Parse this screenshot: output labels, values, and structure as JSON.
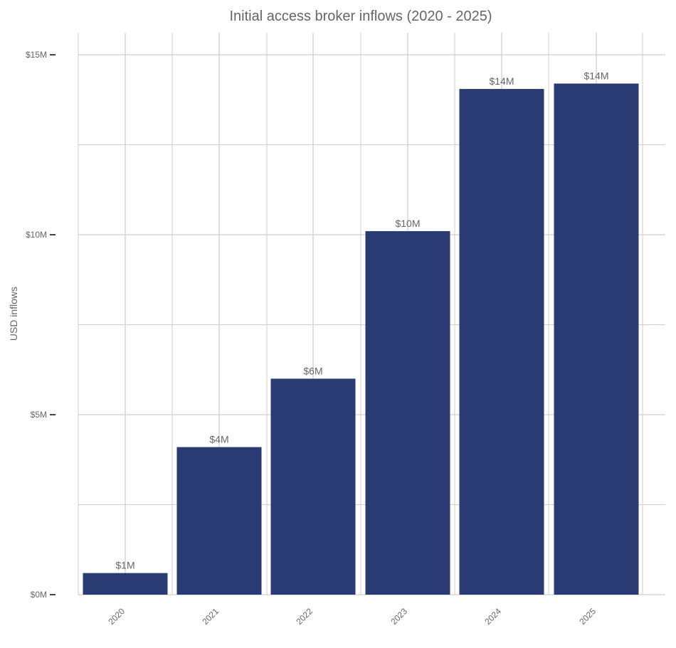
{
  "chart_data": {
    "type": "bar",
    "title": "Initial access broker inflows (2020 - 2025)",
    "xlabel": "",
    "ylabel": "USD inflows",
    "categories": [
      "2020",
      "2021",
      "2022",
      "2023",
      "2024",
      "2025"
    ],
    "values": [
      0.6,
      4.1,
      6.0,
      10.1,
      14.05,
      14.2
    ],
    "value_labels": [
      "$1M",
      "$4M",
      "$6M",
      "$10M",
      "$14M",
      "$14M"
    ],
    "ylim": [
      0,
      15
    ],
    "y_ticks": [
      0,
      5,
      10,
      15
    ],
    "y_tick_labels": [
      "$0M",
      "$5M",
      "$10M",
      "$15M"
    ],
    "grid": true,
    "legend": "none",
    "colors": {
      "bar": "#2a3a72",
      "grid": "#cfcfcf",
      "axis_text": "#666666"
    }
  }
}
